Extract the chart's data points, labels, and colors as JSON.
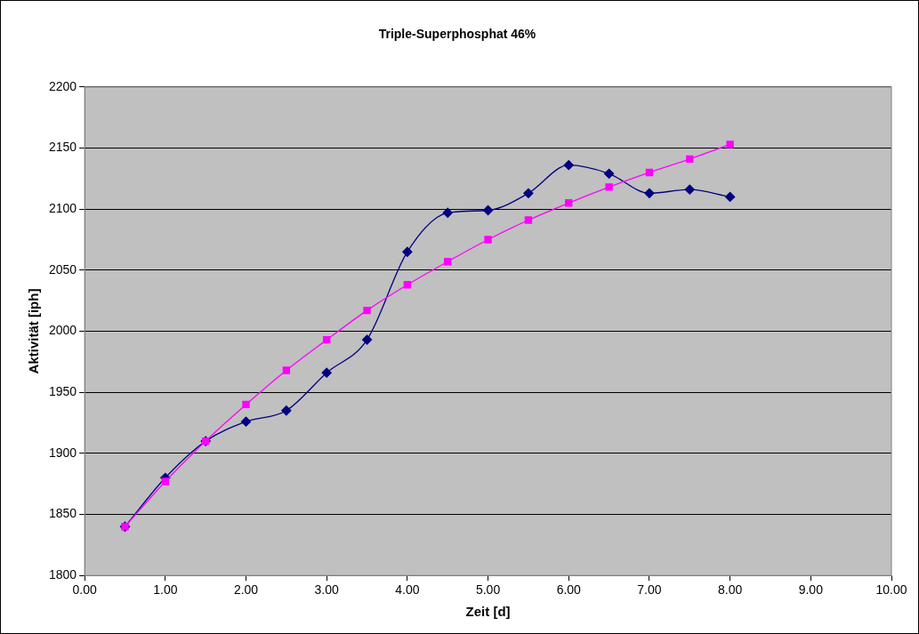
{
  "chart_data": {
    "type": "line",
    "title": "Triple-Superphosphat 46%",
    "xlabel": "Zeit [d]",
    "ylabel": "Aktivität [iph]",
    "x": [
      0.5,
      1,
      1.5,
      2,
      2.5,
      3,
      3.5,
      4,
      4.5,
      5,
      5.5,
      6,
      6.5,
      7,
      7.5,
      8
    ],
    "series": [
      {
        "color": "#000080",
        "marker": "diamond",
        "values": [
          1840,
          1880,
          1910,
          1926,
          1935,
          1966,
          1993,
          2065,
          2097,
          2099,
          2113,
          2136,
          2129,
          2113,
          2116,
          2110
        ]
      },
      {
        "color": "#ff00ff",
        "marker": "square",
        "values": [
          1840,
          1877,
          1910,
          1940,
          1968,
          1993,
          2017,
          2038,
          2057,
          2075,
          2091,
          2105,
          2118,
          2130,
          2141,
          2153
        ]
      }
    ],
    "xlim": [
      0,
      10
    ],
    "xticks": [
      {
        "value": 0,
        "label": "0.00"
      },
      {
        "value": 1,
        "label": "1.00"
      },
      {
        "value": 2,
        "label": "2.00"
      },
      {
        "value": 3,
        "label": "3.00"
      },
      {
        "value": 4,
        "label": "4.00"
      },
      {
        "value": 5,
        "label": "5.00"
      },
      {
        "value": 6,
        "label": "6.00"
      },
      {
        "value": 7,
        "label": "7.00"
      },
      {
        "value": 8,
        "label": "8.00"
      },
      {
        "value": 9,
        "label": "9.00"
      },
      {
        "value": 10,
        "label": "10.00"
      }
    ],
    "ylim": [
      1800,
      2200
    ],
    "yticks": [
      1800,
      1850,
      1900,
      1950,
      2000,
      2050,
      2100,
      2150,
      2200
    ],
    "grid": "y",
    "legend": false
  }
}
